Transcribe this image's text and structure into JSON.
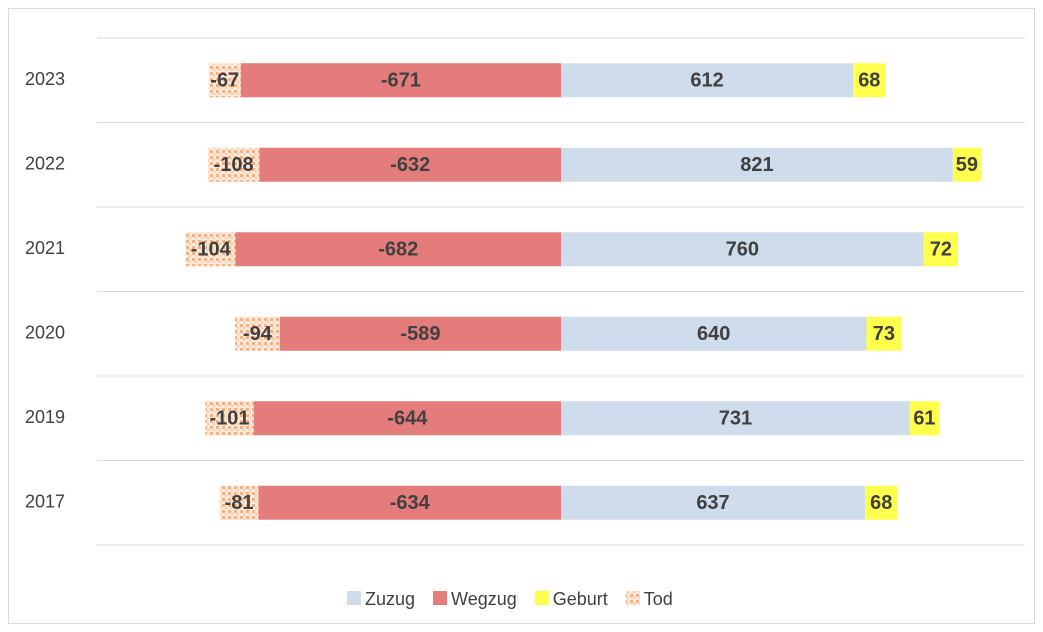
{
  "chart_data": {
    "type": "diverging-stacked-bar",
    "categories": [
      "2023",
      "2022",
      "2021",
      "2020",
      "2019",
      "2017"
    ],
    "series": [
      {
        "name": "Zuzug",
        "color": "#cfdcec",
        "values": [
          612,
          821,
          760,
          640,
          731,
          637
        ]
      },
      {
        "name": "Wegzug",
        "color": "#e47c7c",
        "values": [
          -671,
          -632,
          -682,
          -589,
          -644,
          -634
        ]
      },
      {
        "name": "Geburt",
        "color": "#ffff4d",
        "values": [
          68,
          59,
          72,
          73,
          61,
          68
        ]
      },
      {
        "name": "Tod",
        "color": "#f4b183",
        "pattern": "dotted",
        "values": [
          -67,
          -108,
          -104,
          -94,
          -101,
          -81
        ]
      }
    ],
    "grid": true,
    "legend": "bottom"
  }
}
